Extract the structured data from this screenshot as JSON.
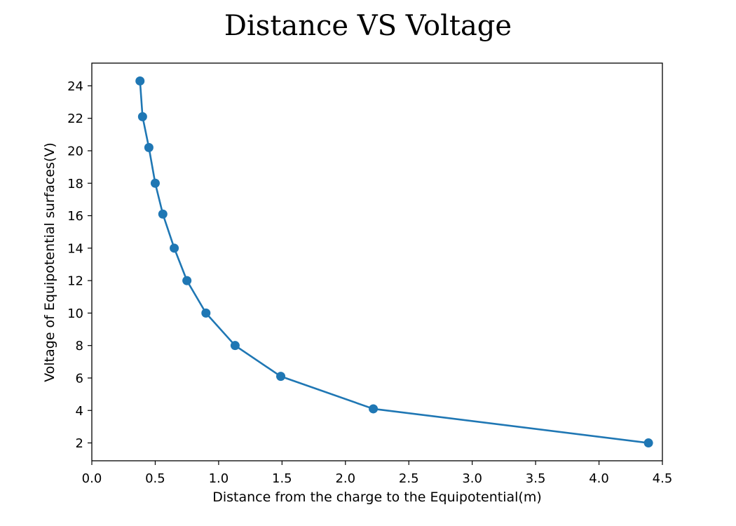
{
  "chart_data": {
    "type": "line",
    "title": "Distance VS Voltage",
    "xlabel": "Distance from the charge to the Equipotential(m)",
    "ylabel": "Voltage of Equipotential surfaces(V)",
    "xlim": [
      0.0,
      4.5
    ],
    "ylim": [
      0.9,
      25.4
    ],
    "xticks": [
      0.0,
      0.5,
      1.0,
      1.5,
      2.0,
      2.5,
      3.0,
      3.5,
      4.0,
      4.5
    ],
    "xtick_labels": [
      "0.0",
      "0.5",
      "1.0",
      "1.5",
      "2.0",
      "2.5",
      "3.0",
      "3.5",
      "4.0",
      "4.5"
    ],
    "yticks": [
      2,
      4,
      6,
      8,
      10,
      12,
      14,
      16,
      18,
      20,
      22,
      24
    ],
    "ytick_labels": [
      "2",
      "4",
      "6",
      "8",
      "10",
      "12",
      "14",
      "16",
      "18",
      "20",
      "22",
      "24"
    ],
    "grid": false,
    "markers": true,
    "series": [
      {
        "color": "#1f77b4",
        "x": [
          0.38,
          0.4,
          0.45,
          0.5,
          0.56,
          0.65,
          0.75,
          0.9,
          1.13,
          1.49,
          2.22,
          4.39
        ],
        "y": [
          24.3,
          22.1,
          20.2,
          18.0,
          16.1,
          14.0,
          12.0,
          10.0,
          8.0,
          6.1,
          4.1,
          2.0
        ]
      }
    ]
  }
}
